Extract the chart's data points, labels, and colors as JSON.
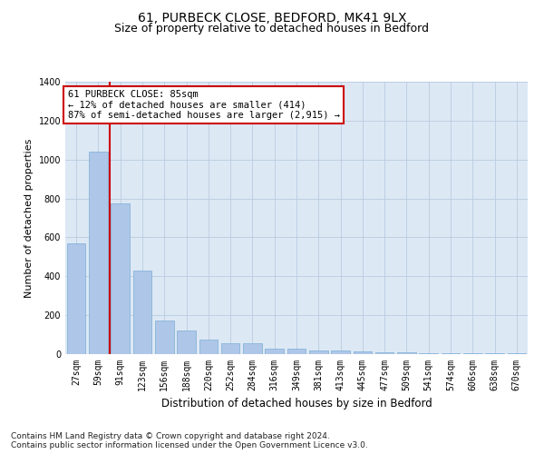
{
  "title1": "61, PURBECK CLOSE, BEDFORD, MK41 9LX",
  "title2": "Size of property relative to detached houses in Bedford",
  "xlabel": "Distribution of detached houses by size in Bedford",
  "ylabel": "Number of detached properties",
  "categories": [
    "27sqm",
    "59sqm",
    "91sqm",
    "123sqm",
    "156sqm",
    "188sqm",
    "220sqm",
    "252sqm",
    "284sqm",
    "316sqm",
    "349sqm",
    "381sqm",
    "413sqm",
    "445sqm",
    "477sqm",
    "509sqm",
    "541sqm",
    "574sqm",
    "606sqm",
    "638sqm",
    "670sqm"
  ],
  "values": [
    570,
    1040,
    775,
    430,
    175,
    120,
    75,
    55,
    55,
    30,
    30,
    20,
    20,
    15,
    10,
    10,
    5,
    5,
    5,
    5,
    5
  ],
  "bar_color": "#aec6e8",
  "bar_edge_color": "#7aafd4",
  "vline_x": 1.5,
  "vline_color": "#cc0000",
  "annotation_text": "61 PURBECK CLOSE: 85sqm\n← 12% of detached houses are smaller (414)\n87% of semi-detached houses are larger (2,915) →",
  "annotation_box_color": "#ffffff",
  "annotation_box_edge_color": "#cc0000",
  "ylim": [
    0,
    1400
  ],
  "yticks": [
    0,
    200,
    400,
    600,
    800,
    1000,
    1200,
    1400
  ],
  "plot_bg_color": "#dde8f5",
  "footnote": "Contains HM Land Registry data © Crown copyright and database right 2024.\nContains public sector information licensed under the Open Government Licence v3.0.",
  "title1_fontsize": 10,
  "title2_fontsize": 9,
  "xlabel_fontsize": 8.5,
  "ylabel_fontsize": 8,
  "tick_fontsize": 7,
  "annotation_fontsize": 7.5,
  "footnote_fontsize": 6.5
}
